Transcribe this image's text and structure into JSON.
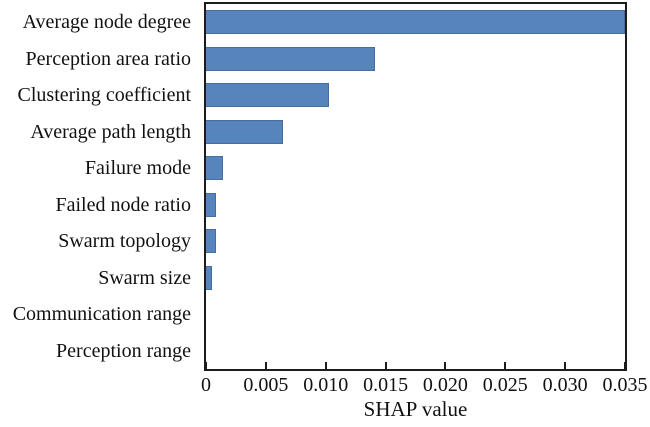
{
  "chart_data": {
    "type": "bar",
    "orientation": "horizontal",
    "title": "",
    "xlabel": "SHAP value",
    "ylabel": "",
    "categories": [
      "Average node degree",
      "Perception area ratio",
      "Clustering coefficient",
      "Average path length",
      "Failure mode",
      "Failed node ratio",
      "Swarm topology",
      "Swarm size",
      "Communication range",
      "Perception range"
    ],
    "values": [
      0.035,
      0.0141,
      0.0103,
      0.0064,
      0.0014,
      0.0008,
      0.0008,
      0.0005,
      0,
      0
    ],
    "xlim": [
      0,
      0.035
    ],
    "xticks": [
      0,
      0.005,
      0.01,
      0.015,
      0.02,
      0.025,
      0.03,
      0.035
    ],
    "xtick_labels": [
      "0",
      "0.005",
      "0.010",
      "0.015",
      "0.020",
      "0.025",
      "0.030",
      "0.035"
    ],
    "grid": false,
    "legend_position": "none",
    "bar_color": "#5884be",
    "bar_border_color": "#466d9e",
    "axis_color": "#1c1c1c"
  }
}
